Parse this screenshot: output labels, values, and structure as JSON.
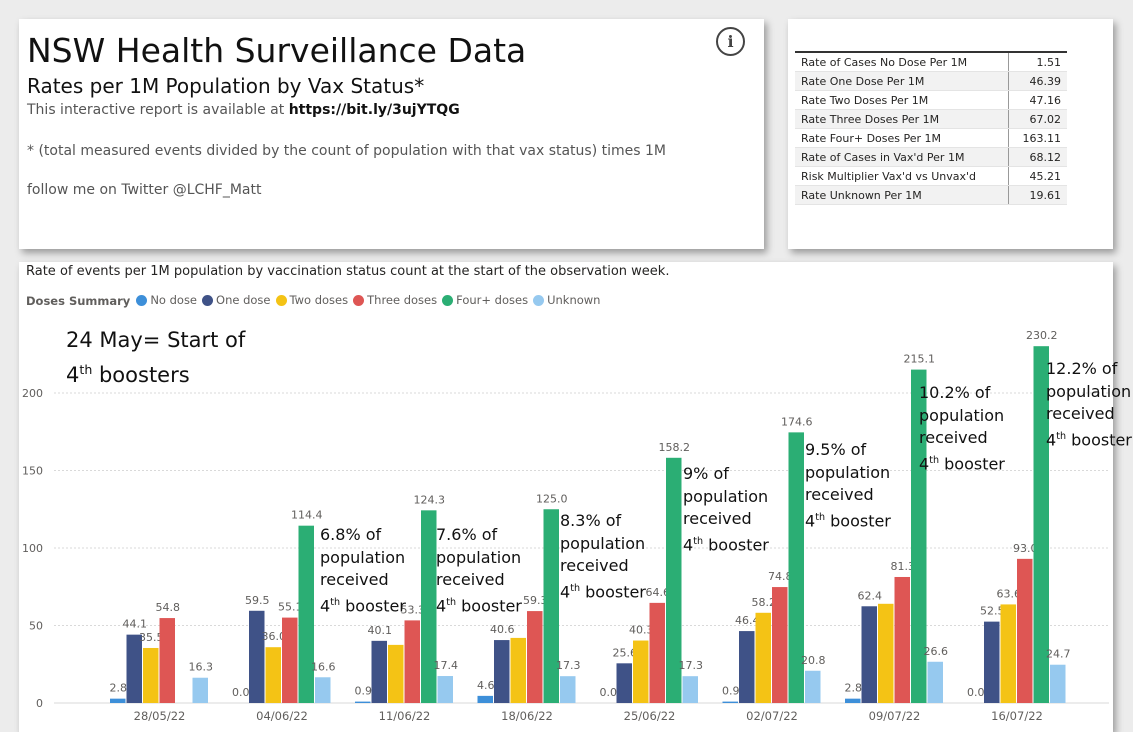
{
  "header": {
    "title": "NSW Health Surveillance Data",
    "subtitle": "Rates per 1M Population by Vax Status*",
    "report_line_prefix": "This interactive report is available at",
    "report_link": "https://bit.ly/3ujYTQG",
    "footnote": "* (total measured events divided by the count of population with that vax status) times 1M",
    "twitter": "follow me on Twitter @LCHF_Matt",
    "info_icon": "info-icon"
  },
  "summary": {
    "rows": [
      {
        "label": "Rate of Cases No Dose Per 1M",
        "value": "1.51"
      },
      {
        "label": "Rate One Dose Per 1M",
        "value": "46.39"
      },
      {
        "label": "Rate Two Doses Per 1M",
        "value": "47.16"
      },
      {
        "label": "Rate Three Doses Per 1M",
        "value": "67.02"
      },
      {
        "label": "Rate Four+ Doses Per 1M",
        "value": "163.11"
      },
      {
        "label": "Rate of Cases in Vax'd Per 1M",
        "value": "68.12"
      },
      {
        "label": "Risk Multiplier Vax'd vs Unvax'd",
        "value": "45.21"
      },
      {
        "label": "Rate Unknown Per 1M",
        "value": "19.61"
      }
    ]
  },
  "annotations": {
    "start_line1": "24 May= Start of",
    "start_line2_num": "4",
    "start_line2_sup": "th",
    "start_line2_rest": " boosters",
    "population_word": "population",
    "received_word": "received",
    "booster_sup": "th",
    "booster_rest": " booster",
    "booster_num": "4",
    "percents": [
      "6.8% of",
      "7.6% of",
      "8.3% of",
      "9% of",
      "9.5% of",
      "10.2% of",
      "12.2% of"
    ]
  },
  "chart_data": {
    "type": "bar",
    "title": "Rate of events per 1M population by vaccination status count at the start of the observation week.",
    "legend_title": "Doses Summary",
    "legend_position": "top-left",
    "categories": [
      "28/05/22",
      "04/06/22",
      "11/06/22",
      "18/06/22",
      "25/06/22",
      "02/07/22",
      "09/07/22",
      "16/07/22"
    ],
    "series": [
      {
        "name": "No dose",
        "color": "#3d8fd9",
        "values": [
          2.8,
          0.0,
          0.9,
          4.6,
          0.0,
          0.9,
          2.8,
          0.0
        ],
        "labels": [
          "2.8",
          "0.0",
          "0.9",
          "4.6",
          "0.0",
          "0.9",
          "2.8",
          "0.0"
        ]
      },
      {
        "name": "One dose",
        "color": "#3f5287",
        "values": [
          44.1,
          59.5,
          40.1,
          40.6,
          25.6,
          46.4,
          62.4,
          52.5
        ],
        "labels": [
          "44.1",
          "59.5",
          "40.1",
          "40.6",
          "25.6",
          "46.4",
          "62.4",
          "52.5"
        ]
      },
      {
        "name": "Two doses",
        "color": "#f4c315",
        "values": [
          35.5,
          36.0,
          37.5,
          42.0,
          40.3,
          58.2,
          64.0,
          63.6
        ],
        "labels": [
          "35.5",
          "36.0",
          "",
          "",
          "40.3",
          "58.2",
          "",
          "63.6"
        ]
      },
      {
        "name": "Three doses",
        "color": "#de5654",
        "values": [
          54.8,
          55.1,
          53.3,
          59.3,
          64.6,
          74.8,
          81.3,
          93.0
        ],
        "labels": [
          "54.8",
          "55.1",
          "53.3",
          "59.3",
          "64.6",
          "74.8",
          "81.3",
          "93.0"
        ]
      },
      {
        "name": "Four+ doses",
        "color": "#2bae74",
        "values": [
          null,
          114.4,
          124.3,
          125.0,
          158.2,
          174.6,
          215.1,
          230.2
        ],
        "labels": [
          "",
          "114.4",
          "124.3",
          "125.0",
          "158.2",
          "174.6",
          "215.1",
          "230.2"
        ]
      },
      {
        "name": "Unknown",
        "color": "#96c9ef",
        "values": [
          16.3,
          16.6,
          17.4,
          17.3,
          17.3,
          20.8,
          26.6,
          24.7
        ],
        "labels": [
          "16.3",
          "16.6",
          "17.4",
          "17.3",
          "17.3",
          "20.8",
          "26.6",
          "24.7"
        ]
      }
    ],
    "y_ticks": [
      "0",
      "50",
      "100",
      "150",
      "200"
    ],
    "ylim": [
      0,
      230
    ],
    "grid": true
  }
}
